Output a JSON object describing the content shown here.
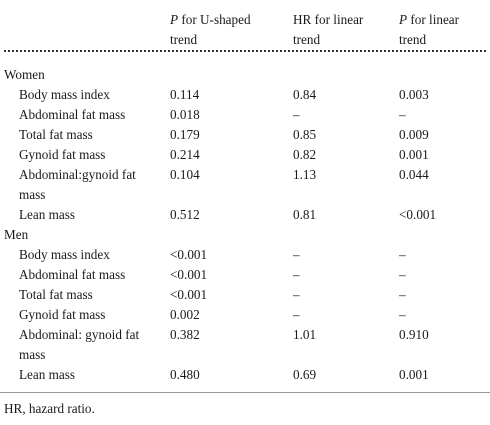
{
  "columns": {
    "col1": [
      "P",
      " for U-shaped",
      "trend"
    ],
    "col2": [
      "HR for linear",
      "trend"
    ],
    "col3": [
      "P",
      " for linear",
      "trend"
    ]
  },
  "groups": [
    {
      "label": "Women",
      "rows": [
        {
          "name": "Body mass index",
          "u": "0.114",
          "hr": "0.84",
          "p": "0.003"
        },
        {
          "name": "Abdominal fat mass",
          "u": "0.018",
          "hr": "–",
          "p": "–"
        },
        {
          "name": "Total fat mass",
          "u": "0.179",
          "hr": "0.85",
          "p": "0.009"
        },
        {
          "name": "Gynoid fat mass",
          "u": "0.214",
          "hr": "0.82",
          "p": "0.001"
        },
        {
          "name": "Abdominal:gynoid fat",
          "name2": "mass",
          "u": "0.104",
          "hr": "1.13",
          "p": "0.044"
        },
        {
          "name": "Lean mass",
          "u": "0.512",
          "hr": "0.81",
          "p": "<0.001"
        }
      ]
    },
    {
      "label": "Men",
      "rows": [
        {
          "name": "Body mass index",
          "u": "<0.001",
          "hr": "–",
          "p": "–"
        },
        {
          "name": "Abdominal fat mass",
          "u": "<0.001",
          "hr": "–",
          "p": "–"
        },
        {
          "name": "Total fat mass",
          "u": "<0.001",
          "hr": "–",
          "p": "–"
        },
        {
          "name": "Gynoid fat mass",
          "u": "0.002",
          "hr": "–",
          "p": "–"
        },
        {
          "name": "Abdominal: gynoid fat",
          "name2": "mass",
          "u": "0.382",
          "hr": "1.01",
          "p": "0.910"
        },
        {
          "name": "Lean mass",
          "u": "0.480",
          "hr": "0.69",
          "p": "0.001"
        }
      ]
    }
  ],
  "footnote": "HR, hazard ratio."
}
